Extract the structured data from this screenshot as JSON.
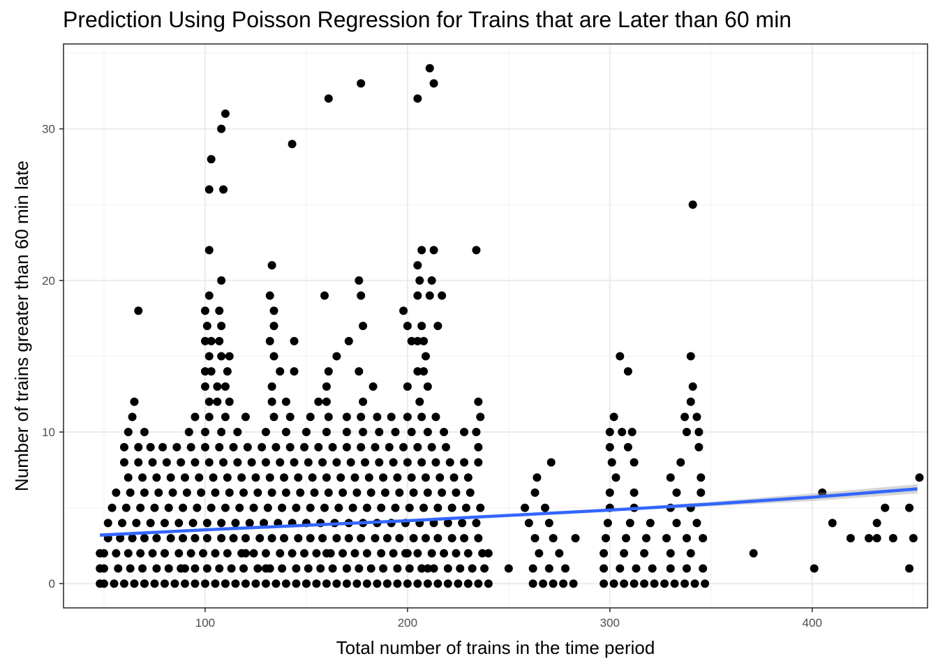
{
  "chart_data": {
    "type": "scatter",
    "title": "Prediction Using Poisson Regression for Trains that are Later than 60 min",
    "xlabel": "Total number of trains in the time period",
    "ylabel": "Number of trains greater than 60 min late",
    "xlim": [
      30,
      457
    ],
    "ylim": [
      -1.6,
      35.6
    ],
    "x_ticks": [
      100,
      200,
      300,
      400
    ],
    "y_ticks": [
      0,
      10,
      20,
      30
    ],
    "grid": true,
    "point_color": "#000000",
    "fit_color": "#3366ff",
    "ribbon_color": "#999999",
    "fit_line": {
      "x": [
        48,
        100,
        150,
        200,
        250,
        300,
        350,
        400,
        452
      ],
      "y": [
        3.2,
        3.55,
        3.85,
        4.15,
        4.5,
        4.85,
        5.25,
        5.7,
        6.25
      ],
      "se_upper": [
        3.32,
        3.6,
        3.88,
        4.2,
        4.55,
        4.93,
        5.4,
        5.95,
        6.55
      ],
      "se_lower": [
        3.08,
        3.5,
        3.82,
        4.1,
        4.45,
        4.77,
        5.1,
        5.45,
        5.95
      ]
    },
    "series": [
      {
        "x": [
          50,
          55,
          60,
          65,
          70,
          75,
          80,
          85,
          90,
          95,
          100,
          105,
          110,
          115,
          120,
          125,
          130,
          135,
          140,
          145,
          150,
          155,
          160,
          165,
          170,
          175,
          180,
          185,
          190,
          195,
          200,
          205,
          210,
          215,
          220,
          225,
          230,
          235,
          240,
          262,
          267,
          272,
          277,
          282,
          297,
          302,
          307,
          312,
          317,
          322,
          327,
          332,
          337,
          342,
          347,
          50,
          57,
          63,
          69,
          76,
          82,
          88,
          95,
          101,
          107,
          113,
          119,
          126,
          132,
          138,
          145,
          151,
          157,
          163,
          170,
          176,
          182,
          188,
          195,
          201,
          207,
          213,
          220,
          226,
          232,
          238,
          262,
          270,
          278,
          297,
          305,
          313,
          321,
          330,
          338,
          346,
          401,
          50,
          56,
          62,
          68,
          74,
          80,
          87,
          93,
          99,
          105,
          111,
          118,
          124,
          130,
          137,
          143,
          149,
          155,
          162,
          168,
          174,
          180,
          187,
          193,
          199,
          205,
          212,
          218,
          224,
          230,
          237,
          265,
          275,
          297,
          307,
          317,
          330,
          340,
          52,
          58,
          64,
          70,
          76,
          83,
          89,
          95,
          101,
          108,
          114,
          120,
          127,
          133,
          139,
          146,
          152,
          158,
          165,
          171,
          177,
          184,
          190,
          196,
          203,
          209,
          215,
          222,
          228,
          235,
          263,
          272,
          283,
          298,
          308,
          318,
          328,
          338,
          346,
          371,
          419,
          432,
          440,
          450,
          52,
          59,
          66,
          73,
          80,
          87,
          94,
          101,
          108,
          115,
          122,
          129,
          136,
          143,
          150,
          157,
          164,
          171,
          178,
          185,
          192,
          199,
          206,
          213,
          220,
          227,
          234,
          260,
          270,
          299,
          310,
          320,
          333,
          343,
          410,
          432,
          448,
          54,
          61,
          68,
          75,
          82,
          89,
          96,
          103,
          110,
          117,
          124,
          131,
          138,
          145,
          152,
          159,
          166,
          173,
          180,
          187,
          194,
          201,
          208,
          215,
          222,
          229,
          236,
          258,
          268,
          300,
          312,
          330,
          340,
          405,
          428,
          436,
          448,
          453,
          56,
          63,
          70,
          77,
          84,
          91,
          98,
          105,
          112,
          119,
          126,
          133,
          140,
          147,
          154,
          161,
          168,
          175,
          182,
          189,
          196,
          203,
          210,
          217,
          224,
          231,
          263,
          300,
          312,
          333,
          345,
          62,
          69,
          76,
          83,
          90,
          97,
          104,
          111,
          118,
          125,
          132,
          139,
          146,
          153,
          160,
          167,
          174,
          181,
          188,
          195,
          202,
          209,
          216,
          223,
          230,
          264,
          303,
          330,
          345,
          60,
          67,
          74,
          81,
          88,
          95,
          102,
          109,
          116,
          123,
          130,
          137,
          144,
          151,
          158,
          165,
          172,
          179,
          186,
          193,
          200,
          207,
          214,
          221,
          228,
          235,
          271,
          301,
          312,
          335,
          60,
          67,
          73,
          79,
          86,
          93,
          100,
          107,
          114,
          121,
          128,
          135,
          142,
          149,
          156,
          163,
          170,
          177,
          184,
          191,
          198,
          205,
          212,
          219,
          235,
          300,
          309,
          344,
          62,
          70,
          92,
          100,
          108,
          116,
          130,
          140,
          150,
          160,
          170,
          178,
          186,
          194,
          202,
          210,
          218,
          228,
          234,
          300,
          306,
          311,
          338,
          344,
          64,
          95,
          102,
          110,
          120,
          134,
          142,
          152,
          161,
          170,
          177,
          185,
          192,
          200,
          207,
          214,
          236,
          302,
          337,
          343,
          65,
          102,
          106,
          112,
          133,
          140,
          156,
          160,
          178,
          206,
          235,
          340,
          100,
          106,
          110,
          133,
          160,
          183,
          200,
          210,
          341,
          100,
          103,
          111,
          137,
          144,
          161,
          176,
          205,
          208,
          309,
          102,
          108,
          112,
          134,
          165,
          209,
          305,
          340,
          100,
          103,
          107,
          132,
          144,
          171,
          202,
          205,
          208,
          101,
          108,
          134,
          178,
          200,
          207,
          215,
          67,
          100,
          107,
          134,
          198,
          102,
          132,
          159,
          177,
          205,
          211,
          217,
          108,
          176,
          206,
          212,
          133,
          205,
          341,
          102,
          207,
          213,
          234,
          102,
          103,
          108,
          143,
          110,
          109,
          205,
          161,
          177,
          213,
          211,
          48,
          70,
          110,
          150,
          190,
          230,
          48,
          90,
          130,
          170,
          210,
          250,
          48,
          80,
          120,
          160,
          200,
          240
        ],
        "y": [
          0,
          0,
          0,
          0,
          0,
          0,
          0,
          0,
          0,
          0,
          0,
          0,
          0,
          0,
          0,
          0,
          0,
          0,
          0,
          0,
          0,
          0,
          0,
          0,
          0,
          0,
          0,
          0,
          0,
          0,
          0,
          0,
          0,
          0,
          0,
          0,
          0,
          0,
          0,
          0,
          0,
          0,
          0,
          0,
          0,
          0,
          0,
          0,
          0,
          0,
          0,
          0,
          0,
          0,
          0,
          1,
          1,
          1,
          1,
          1,
          1,
          1,
          1,
          1,
          1,
          1,
          1,
          1,
          1,
          1,
          1,
          1,
          1,
          1,
          1,
          1,
          1,
          1,
          1,
          1,
          1,
          1,
          1,
          1,
          1,
          1,
          1,
          1,
          1,
          1,
          1,
          1,
          1,
          1,
          1,
          1,
          1,
          2,
          2,
          2,
          2,
          2,
          2,
          2,
          2,
          2,
          2,
          2,
          2,
          2,
          2,
          2,
          2,
          2,
          2,
          2,
          2,
          2,
          2,
          2,
          2,
          2,
          2,
          2,
          2,
          2,
          2,
          2,
          2,
          2,
          2,
          2,
          2,
          2,
          2,
          3,
          3,
          3,
          3,
          3,
          3,
          3,
          3,
          3,
          3,
          3,
          3,
          3,
          3,
          3,
          3,
          3,
          3,
          3,
          3,
          3,
          3,
          3,
          3,
          3,
          3,
          3,
          3,
          3,
          3,
          3,
          3,
          3,
          3,
          3,
          3,
          3,
          3,
          3,
          2,
          3,
          3,
          3,
          3,
          4,
          4,
          4,
          4,
          4,
          4,
          4,
          4,
          4,
          4,
          4,
          4,
          4,
          4,
          4,
          4,
          4,
          4,
          4,
          4,
          4,
          4,
          4,
          4,
          4,
          4,
          4,
          4,
          4,
          4,
          4,
          4,
          4,
          4,
          4,
          4,
          5,
          5,
          5,
          5,
          5,
          5,
          5,
          5,
          5,
          5,
          5,
          5,
          5,
          5,
          5,
          5,
          5,
          5,
          5,
          5,
          5,
          5,
          5,
          5,
          5,
          5,
          5,
          5,
          5,
          5,
          5,
          5,
          5,
          5,
          6,
          3,
          5,
          1,
          7,
          6,
          6,
          6,
          6,
          6,
          6,
          6,
          6,
          6,
          6,
          6,
          6,
          6,
          6,
          6,
          6,
          6,
          6,
          6,
          6,
          6,
          6,
          6,
          6,
          6,
          6,
          6,
          6,
          6,
          6,
          6,
          7,
          7,
          7,
          7,
          7,
          7,
          7,
          7,
          7,
          7,
          7,
          7,
          7,
          7,
          7,
          7,
          7,
          7,
          7,
          7,
          7,
          7,
          7,
          7,
          7,
          7,
          7,
          7,
          7,
          8,
          8,
          8,
          8,
          8,
          8,
          8,
          8,
          8,
          8,
          8,
          8,
          8,
          8,
          8,
          8,
          8,
          8,
          8,
          8,
          8,
          8,
          8,
          8,
          8,
          8,
          8,
          8,
          8,
          8,
          9,
          9,
          9,
          9,
          9,
          9,
          9,
          9,
          9,
          9,
          9,
          9,
          9,
          9,
          9,
          9,
          9,
          9,
          9,
          9,
          9,
          9,
          9,
          9,
          9,
          9,
          9,
          9,
          10,
          10,
          10,
          10,
          10,
          10,
          10,
          10,
          10,
          10,
          10,
          10,
          10,
          10,
          10,
          10,
          10,
          10,
          10,
          10,
          10,
          10,
          10,
          10,
          11,
          11,
          11,
          11,
          11,
          11,
          11,
          11,
          11,
          11,
          11,
          11,
          11,
          11,
          11,
          11,
          11,
          11,
          11,
          11,
          12,
          12,
          12,
          12,
          12,
          12,
          12,
          12,
          12,
          12,
          12,
          12,
          13,
          13,
          13,
          13,
          13,
          13,
          13,
          13,
          13,
          14,
          14,
          14,
          14,
          14,
          14,
          14,
          14,
          14,
          14,
          15,
          15,
          15,
          15,
          15,
          15,
          15,
          15,
          16,
          16,
          16,
          16,
          16,
          16,
          16,
          16,
          16,
          17,
          17,
          17,
          17,
          17,
          17,
          17,
          18,
          18,
          18,
          18,
          18,
          19,
          19,
          19,
          19,
          19,
          19,
          19,
          20,
          20,
          20,
          20,
          21,
          21,
          25,
          22,
          22,
          22,
          22,
          26,
          28,
          30,
          29,
          31,
          26,
          32,
          32,
          33,
          33,
          34,
          0,
          0,
          0,
          0,
          0,
          0,
          1,
          1,
          1,
          1,
          1,
          1,
          2,
          2,
          2,
          2,
          2,
          2
        ]
      }
    ]
  }
}
